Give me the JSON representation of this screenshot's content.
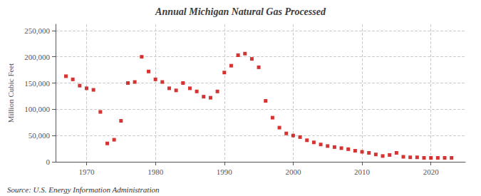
{
  "chart_data": {
    "type": "scatter",
    "title": "Annual Michigan Natural Gas Processed",
    "ylabel": "Million Cubic Feet",
    "annotations": [
      "Source: U.S. Energy Information Administration"
    ],
    "x": [
      1967,
      1968,
      1969,
      1970,
      1971,
      1972,
      1973,
      1974,
      1975,
      1976,
      1977,
      1978,
      1979,
      1980,
      1981,
      1982,
      1983,
      1984,
      1985,
      1986,
      1987,
      1988,
      1989,
      1990,
      1991,
      1992,
      1993,
      1994,
      1995,
      1996,
      1997,
      1998,
      1999,
      2000,
      2001,
      2002,
      2003,
      2004,
      2005,
      2006,
      2007,
      2008,
      2009,
      2010,
      2011,
      2012,
      2013,
      2014,
      2015,
      2016,
      2017,
      2018,
      2019,
      2020,
      2021,
      2022,
      2023
    ],
    "values": [
      163000,
      157000,
      145000,
      140000,
      137000,
      95000,
      35000,
      42000,
      78000,
      150000,
      152000,
      200000,
      172000,
      157000,
      152000,
      140000,
      136000,
      150000,
      140000,
      134000,
      124000,
      122000,
      134000,
      170000,
      183000,
      203000,
      206000,
      196000,
      180000,
      116000,
      84000,
      65000,
      54000,
      50000,
      47000,
      41000,
      37000,
      33000,
      30000,
      28000,
      26000,
      24000,
      21000,
      19000,
      17000,
      14000,
      11000,
      13000,
      17000,
      9500,
      8500,
      8500,
      7500,
      7500,
      7500,
      7500,
      7500
    ],
    "color": "#cc0000",
    "marker": "square",
    "xlim": [
      1965.5,
      2025
    ],
    "xticks": [
      1970,
      1980,
      1990,
      2000,
      2010,
      2020
    ],
    "ylim": [
      0,
      262000
    ],
    "yticks": [
      0,
      {
        "value": 50000,
        "label": "50,000"
      },
      {
        "value": 100000,
        "label": "100,000"
      },
      {
        "value": 150000,
        "label": "150,000"
      },
      {
        "value": 200000,
        "label": "200,000"
      },
      {
        "value": 250000,
        "label": "250,000"
      }
    ],
    "grid": true
  }
}
